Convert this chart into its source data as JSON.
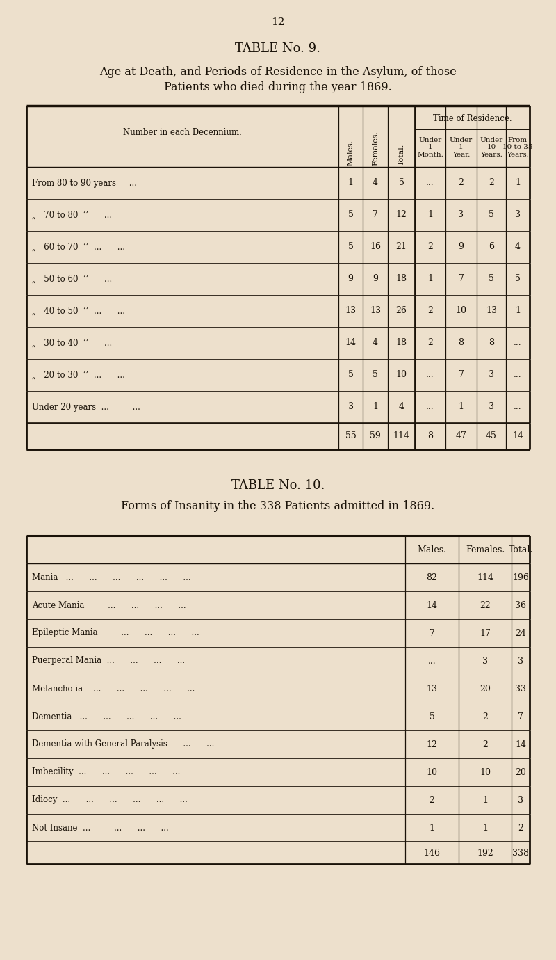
{
  "page_number": "12",
  "bg_color": "#ede0cc",
  "text_color": "#1a1208",
  "table9": {
    "title1": "TABLE No. 9.",
    "title2": "Age at Death, and Periods of Residence in the Asylum, of those",
    "title3": "Patients who died during the year 1869.",
    "time_of_residence": "Time of Residence.",
    "row_labels": [
      "From 80 to 90 years     ...",
      "„   70 to 80  ’’      ...",
      "„   60 to 70  ’’  ...      ...",
      "„   50 to 60  ’’      ...",
      "„   40 to 50  ’’  ...      ...",
      "„   30 to 40  ’’      ...",
      "„   20 to 30  ’’  ...      ...",
      "Under 20 years  ...         ..."
    ],
    "rows": [
      {
        "males": "1",
        "females": "4",
        "total": "5",
        "u1m": "...",
        "u1y": "2",
        "u10": "2",
        "f1035": "1"
      },
      {
        "males": "5",
        "females": "7",
        "total": "12",
        "u1m": "1",
        "u1y": "3",
        "u10": "5",
        "f1035": "3"
      },
      {
        "males": "5",
        "females": "16",
        "total": "21",
        "u1m": "2",
        "u1y": "9",
        "u10": "6",
        "f1035": "4"
      },
      {
        "males": "9",
        "females": "9",
        "total": "18",
        "u1m": "1",
        "u1y": "7",
        "u10": "5",
        "f1035": "5"
      },
      {
        "males": "13",
        "females": "13",
        "total": "26",
        "u1m": "2",
        "u1y": "10",
        "u10": "13",
        "f1035": "1"
      },
      {
        "males": "14",
        "females": "4",
        "total": "18",
        "u1m": "2",
        "u1y": "8",
        "u10": "8",
        "f1035": "..."
      },
      {
        "males": "5",
        "females": "5",
        "total": "10",
        "u1m": "...",
        "u1y": "7",
        "u10": "3",
        "f1035": "..."
      },
      {
        "males": "3",
        "females": "1",
        "total": "4",
        "u1m": "...",
        "u1y": "1",
        "u10": "3",
        "f1035": "..."
      }
    ],
    "totals": {
      "males": "55",
      "females": "59",
      "total": "114",
      "u1m": "8",
      "u1y": "47",
      "u10": "45",
      "f1035": "14"
    }
  },
  "table10": {
    "title1": "TABLE No. 10.",
    "title2": "Forms of Insanity in the 338 Patients admitted in 1869.",
    "row_labels": [
      "Mania   ...      ...      ...      ...      ...      ...",
      "Acute Mania         ...      ...      ...      ...",
      "Epileptic Mania         ...      ...      ...      ...",
      "Puerperal Mania  ...      ...      ...      ...",
      "Melancholia    ...      ...      ...      ...      ...",
      "Dementia   ...      ...      ...      ...      ...",
      "Dementia with General Paralysis      ...      ...",
      "Imbecility  ...      ...      ...      ...      ...",
      "Idiocy  ...      ...      ...      ...      ...      ...",
      "Not Insane  ...         ...      ...      ..."
    ],
    "rows": [
      {
        "males": "82",
        "females": "114",
        "total": "196"
      },
      {
        "males": "14",
        "females": "22",
        "total": "36"
      },
      {
        "males": "7",
        "females": "17",
        "total": "24"
      },
      {
        "males": "...",
        "females": "3",
        "total": "3"
      },
      {
        "males": "13",
        "females": "20",
        "total": "33"
      },
      {
        "males": "5",
        "females": "2",
        "total": "7"
      },
      {
        "males": "12",
        "females": "2",
        "total": "14"
      },
      {
        "males": "10",
        "females": "10",
        "total": "20"
      },
      {
        "males": "2",
        "females": "1",
        "total": "3"
      },
      {
        "males": "1",
        "females": "1",
        "total": "2"
      }
    ],
    "totals": {
      "males": "146",
      "females": "192",
      "total": "338"
    }
  }
}
